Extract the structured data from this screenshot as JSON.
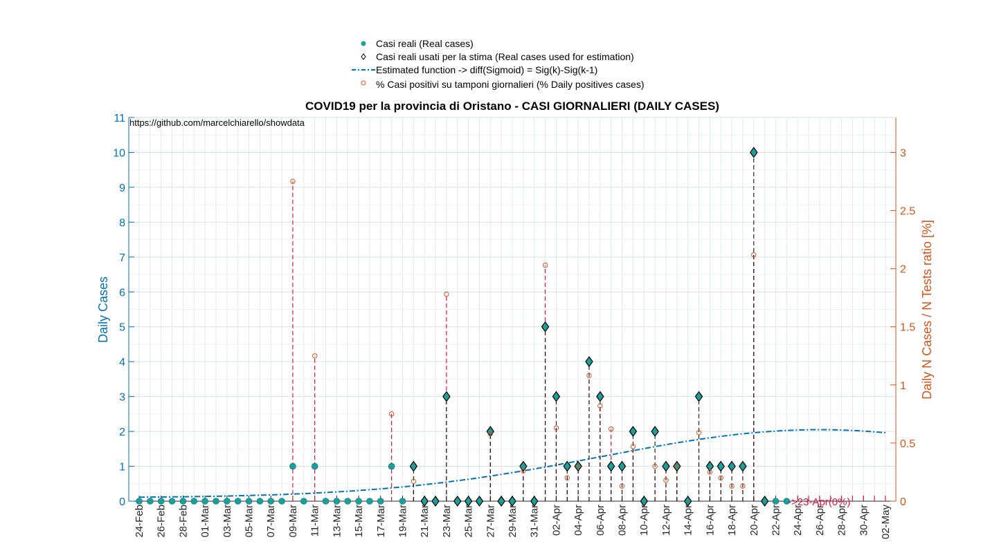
{
  "chart_data": {
    "type": "line",
    "title": "COVID19 per la provincia di Oristano - CASI GIORNALIERI (DAILY CASES)",
    "annotation": "https://github.com/marcelchiarello/showdata",
    "ylabel_left": "Daily Cases",
    "ylabel_right": "Daily N Cases / N Tests ratio [%]",
    "ylim_left": [
      0,
      11
    ],
    "ylim_right": [
      0,
      3.3
    ],
    "left_ticks": [
      "0",
      "1",
      "2",
      "3",
      "4",
      "5",
      "6",
      "7",
      "8",
      "9",
      "10",
      "11"
    ],
    "right_ticks": [
      "0",
      "0.5",
      "1",
      "1.5",
      "2",
      "2.5",
      "3"
    ],
    "x_tick_labels": [
      "24-Feb",
      "26-Feb",
      "28-Feb",
      "01-Mar",
      "03-Mar",
      "05-Mar",
      "07-Mar",
      "09-Mar",
      "11-Mar",
      "13-Mar",
      "15-Mar",
      "17-Mar",
      "19-Mar",
      "21-Mar",
      "23-Mar",
      "25-Mar",
      "27-Mar",
      "29-Mar",
      "31-Mar",
      "02-Apr",
      "04-Apr",
      "06-Apr",
      "08-Apr",
      "10-Apr",
      "12-Apr",
      "14-Apr",
      "16-Apr",
      "18-Apr",
      "20-Apr",
      "22-Apr",
      "24-Apr",
      "26-Apr",
      "28-Apr",
      "30-Apr",
      "02-May"
    ],
    "x_range_days": [
      "24-Feb",
      "02-May"
    ],
    "grid": true,
    "legend_position": "top-center",
    "end_annotation": "->23-Apr(0%)",
    "colors": {
      "real_cases": "#1C9E9A",
      "estimation_points": "#1C9E9A",
      "estimated_function": "#0072BD",
      "ratio": "#D95319",
      "ratio_stem": "#E0143C",
      "left_axis": "#0072BD",
      "right_axis": "#D95319"
    },
    "series": [
      {
        "name": "Casi reali (Real cases)",
        "marker": "filled-circle",
        "x": [
          "24-Feb",
          "25-Feb",
          "26-Feb",
          "27-Feb",
          "28-Feb",
          "29-Feb",
          "01-Mar",
          "02-Mar",
          "03-Mar",
          "04-Mar",
          "05-Mar",
          "06-Mar",
          "07-Mar",
          "08-Mar",
          "09-Mar",
          "10-Mar",
          "11-Mar",
          "12-Mar",
          "13-Mar",
          "14-Mar",
          "15-Mar",
          "16-Mar",
          "17-Mar",
          "18-Mar",
          "19-Mar",
          "20-Mar",
          "21-Mar",
          "22-Mar",
          "23-Mar",
          "24-Mar",
          "25-Mar",
          "26-Mar",
          "27-Mar",
          "28-Mar",
          "29-Mar",
          "30-Mar",
          "31-Mar",
          "01-Apr",
          "02-Apr",
          "03-Apr",
          "04-Apr",
          "05-Apr",
          "06-Apr",
          "07-Apr",
          "08-Apr",
          "09-Apr",
          "10-Apr",
          "11-Apr",
          "12-Apr",
          "13-Apr",
          "14-Apr",
          "15-Apr",
          "16-Apr",
          "17-Apr",
          "18-Apr",
          "19-Apr",
          "20-Apr",
          "21-Apr",
          "22-Apr",
          "23-Apr"
        ],
        "y": [
          0,
          0,
          0,
          0,
          0,
          0,
          0,
          0,
          0,
          0,
          0,
          0,
          0,
          0,
          1,
          0,
          1,
          0,
          0,
          0,
          0,
          0,
          0,
          1,
          0,
          1,
          0,
          0,
          3,
          0,
          0,
          0,
          2,
          0,
          0,
          1,
          0,
          5,
          3,
          1,
          1,
          4,
          3,
          1,
          1,
          2,
          0,
          2,
          1,
          1,
          0,
          3,
          1,
          1,
          1,
          1,
          10,
          0,
          0,
          0
        ]
      },
      {
        "name": "Casi reali usati per la stima (Real cases used for estimation)",
        "marker": "diamond",
        "x": [
          "20-Mar",
          "21-Mar",
          "22-Mar",
          "23-Mar",
          "24-Mar",
          "25-Mar",
          "26-Mar",
          "27-Mar",
          "28-Mar",
          "29-Mar",
          "30-Mar",
          "31-Mar",
          "01-Apr",
          "02-Apr",
          "03-Apr",
          "04-Apr",
          "05-Apr",
          "06-Apr",
          "07-Apr",
          "08-Apr",
          "09-Apr",
          "10-Apr",
          "11-Apr",
          "12-Apr",
          "13-Apr",
          "14-Apr",
          "15-Apr",
          "16-Apr",
          "17-Apr",
          "18-Apr",
          "19-Apr",
          "20-Apr",
          "21-Apr"
        ],
        "y": [
          1,
          0,
          0,
          3,
          0,
          0,
          0,
          2,
          0,
          0,
          1,
          0,
          5,
          3,
          1,
          1,
          4,
          3,
          1,
          1,
          2,
          0,
          2,
          1,
          1,
          0,
          3,
          1,
          1,
          1,
          1,
          10,
          0
        ]
      },
      {
        "name": "Estimated function -> diff(Sigmoid) = Sig(k)-Sig(k-1)",
        "style": "dash-dot",
        "x_range": [
          "24-Feb",
          "02-May"
        ],
        "peak_date": "26-Apr",
        "peak_value": 2.05,
        "start_value": 0.1,
        "end_value": 1.95
      },
      {
        "name": "% Casi positivi su tamponi giornalieri (% Daily positives cases)",
        "marker": "open-circle",
        "axis": "right",
        "x": [
          "09-Mar",
          "11-Mar",
          "18-Mar",
          "20-Mar",
          "23-Mar",
          "27-Mar",
          "30-Mar",
          "01-Apr",
          "02-Apr",
          "03-Apr",
          "04-Apr",
          "05-Apr",
          "06-Apr",
          "07-Apr",
          "08-Apr",
          "09-Apr",
          "11-Apr",
          "12-Apr",
          "13-Apr",
          "15-Apr",
          "16-Apr",
          "17-Apr",
          "18-Apr",
          "19-Apr",
          "20-Apr"
        ],
        "y": [
          2.75,
          1.25,
          0.75,
          0.17,
          1.78,
          0.58,
          0.26,
          2.03,
          0.63,
          0.2,
          0.3,
          1.08,
          0.82,
          0.62,
          0.13,
          0.47,
          0.3,
          0.18,
          0.3,
          0.59,
          0.25,
          0.2,
          0.13,
          0.13,
          2.12
        ]
      }
    ]
  }
}
